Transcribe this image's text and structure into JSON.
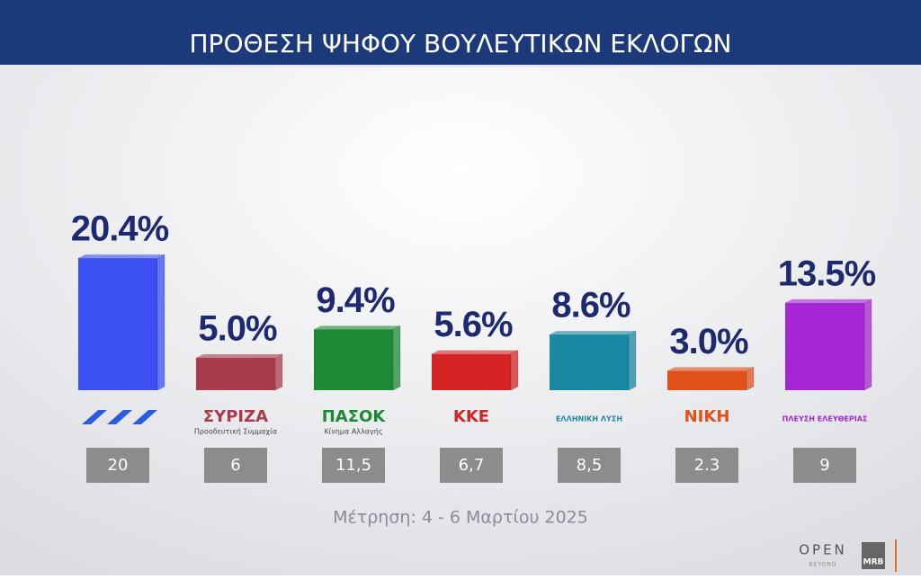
{
  "chart_data": {
    "type": "bar",
    "title": "ΠΡΟΘΕΣΗ ΨΗΦΟΥ ΒΟΥΛΕΥΤΙΚΩΝ ΕΚΛΟΓΩΝ",
    "categories": [
      null,
      "ΣΥΡΙΖΑ",
      "ΠΑΣΟΚ",
      "ΚΚΕ",
      "ΕΛΛΗΝΙΚΗ ΛΥΣΗ",
      "ΝΙΚΗ",
      "ΠΛΕΥΣΗ ΕΛΕΥΘΕΡΙΑΣ"
    ],
    "category_sublabels": [
      null,
      "Προοδευτική Συμμαχία",
      "Κίνημα Αλλαγής",
      null,
      null,
      null,
      null
    ],
    "values": [
      20.4,
      5.0,
      9.4,
      5.6,
      8.6,
      3.0,
      13.5
    ],
    "value_labels": [
      "20.4%",
      "5.0%",
      "9.4%",
      "5.6%",
      "8.6%",
      "3.0%",
      "13.5%"
    ],
    "colors": [
      "#3b4ff2",
      "#a83c4c",
      "#1c8a34",
      "#d42424",
      "#1a88a2",
      "#e0521a",
      "#a426d4"
    ],
    "previous_values": [
      20,
      6,
      11.5,
      6.7,
      8.5,
      2.3,
      9
    ],
    "previous_labels": [
      "20",
      "6",
      "11,5",
      "6,7",
      "8,5",
      "2.3",
      "9"
    ],
    "footnote": "Μέτρηση: 4 - 6 Μαρτίου 2025",
    "brand": "OPEN",
    "brand_sub": "BEYOND",
    "pollster": "MRB"
  }
}
